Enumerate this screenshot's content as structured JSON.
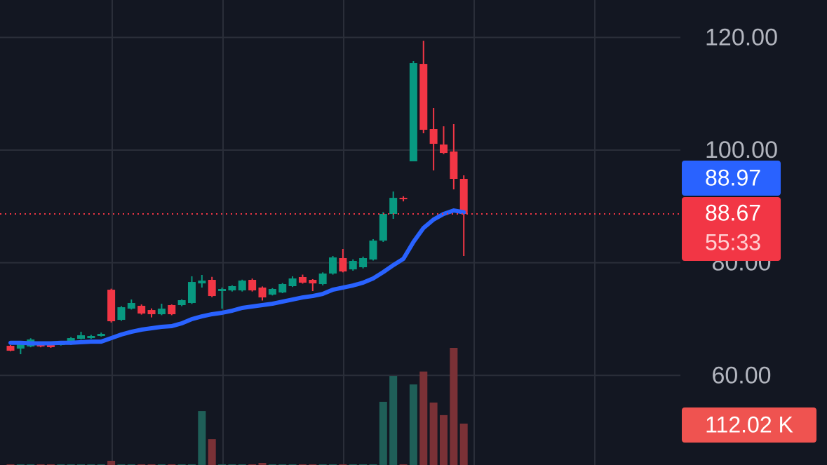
{
  "chart_data": {
    "type": "candlestick",
    "ylim": [
      44.1,
      126.65
    ],
    "yticks": [
      {
        "value": 60,
        "label": "60.00"
      },
      {
        "value": 80,
        "label": "80.00"
      },
      {
        "value": 100,
        "label": "100.00"
      },
      {
        "value": 120,
        "label": "120.00"
      }
    ],
    "grid": true,
    "up_color": "#089981",
    "down_color": "#f23645",
    "open": [
      65.26,
      64.77,
      65.14,
      65.76,
      65.64,
      65.39,
      65.51,
      66.51,
      66.63,
      67.01,
      75.22,
      69.87,
      71.86,
      72.36,
      71.61,
      70.87,
      72.49,
      72.49,
      72.86,
      76.34,
      76.97,
      74.98,
      75.1,
      75.1,
      76.97,
      75.6,
      74.35,
      74.73,
      75.85,
      77.47,
      76.97,
      76.22,
      78.09,
      80.83,
      78.83,
      79.21,
      80.58,
      83.94,
      88.67,
      91.53,
      98.01,
      115.31,
      103.74,
      100.99,
      99.75,
      94.9
    ],
    "high": [
      65.4,
      65.9,
      66.6,
      65.9,
      65.8,
      66.1,
      66.8,
      67.75,
      67.2,
      67.6,
      75.4,
      72.3,
      73.48,
      72.6,
      71.9,
      72.73,
      72.6,
      73.5,
      77.6,
      77.84,
      77.5,
      75.6,
      76.0,
      77.0,
      77.2,
      75.8,
      75.5,
      76.4,
      77.6,
      77.9,
      77.1,
      78.3,
      81.2,
      82.45,
      80.6,
      81.1,
      84.2,
      89.0,
      92.65,
      91.8,
      115.81,
      119.42,
      107.47,
      104.23,
      104.61,
      95.52
    ],
    "low": [
      64.3,
      63.77,
      65.0,
      65.0,
      64.9,
      65.3,
      65.4,
      66.4,
      66.5,
      66.9,
      69.4,
      69.7,
      71.7,
      70.8,
      70.3,
      70.7,
      70.7,
      72.3,
      72.7,
      75.6,
      73.9,
      71.86,
      74.9,
      74.9,
      74.9,
      73.3,
      74.2,
      74.6,
      75.7,
      76.3,
      74.98,
      76.0,
      77.9,
      78.3,
      78.6,
      79.0,
      80.4,
      83.7,
      87.8,
      90.9,
      98.01,
      102.99,
      96.39,
      99.3,
      93.03,
      81.2
    ],
    "close": [
      64.39,
      65.64,
      66.38,
      65.14,
      65.02,
      66.01,
      66.63,
      67.13,
      67.01,
      67.38,
      69.62,
      72.11,
      72.86,
      70.99,
      70.87,
      71.86,
      70.87,
      73.36,
      76.59,
      76.84,
      74.1,
      75.35,
      75.85,
      76.84,
      75.1,
      73.85,
      75.35,
      76.22,
      77.22,
      76.47,
      76.34,
      78.09,
      80.95,
      78.46,
      80.33,
      80.83,
      83.94,
      88.67,
      91.53,
      91.28,
      115.44,
      103.61,
      101.12,
      99.5,
      94.9,
      88.67
    ],
    "ma": {
      "color": "#2962ff",
      "values": [
        65.8,
        65.8,
        65.7,
        65.7,
        65.7,
        65.8,
        65.8,
        65.9,
        66.0,
        66.0,
        66.63,
        67.26,
        67.75,
        68.13,
        68.38,
        68.63,
        68.75,
        69.25,
        70.0,
        70.49,
        70.87,
        71.12,
        71.49,
        71.99,
        72.24,
        72.49,
        72.73,
        73.11,
        73.48,
        73.85,
        74.1,
        74.48,
        75.22,
        75.6,
        75.97,
        76.47,
        77.22,
        78.34,
        79.58,
        80.7,
        83.69,
        86.18,
        87.68,
        88.67,
        89.29,
        88.97
      ]
    },
    "volume": {
      "up_color": "#1f5f58",
      "down_color": "#7a3136",
      "values": [
        2,
        2,
        2,
        2,
        2,
        2,
        2,
        2,
        2,
        2,
        11.4,
        2,
        2,
        2,
        2,
        2,
        2,
        2,
        2,
        146,
        70,
        2,
        2,
        2,
        2,
        5.7,
        2,
        2,
        2,
        2,
        2,
        2,
        2,
        2,
        2,
        2,
        2,
        171,
        241,
        2,
        218,
        253,
        169,
        135,
        317,
        112.02
      ],
      "value_label": "112.02 K"
    },
    "countdown": "55:33"
  }
}
